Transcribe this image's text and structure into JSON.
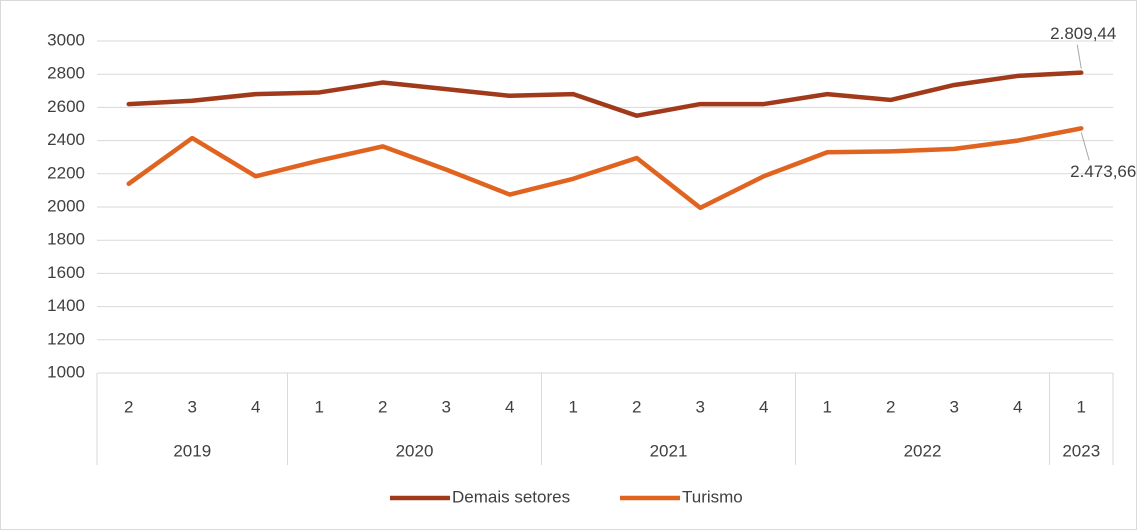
{
  "chart_data": {
    "type": "line",
    "groups": [
      {
        "label": "2019",
        "categories": [
          "2",
          "3",
          "4"
        ]
      },
      {
        "label": "2020",
        "categories": [
          "1",
          "2",
          "3",
          "4"
        ]
      },
      {
        "label": "2021",
        "categories": [
          "1",
          "2",
          "3",
          "4"
        ]
      },
      {
        "label": "2022",
        "categories": [
          "1",
          "2",
          "3",
          "4"
        ]
      },
      {
        "label": "2023",
        "categories": [
          "1"
        ]
      }
    ],
    "series": [
      {
        "name": "Demais setores",
        "color": "#a13a1b",
        "values": [
          2620,
          2640,
          2680,
          2690,
          2750,
          2710,
          2670,
          2680,
          2550,
          2620,
          2620,
          2680,
          2645,
          2735,
          2790,
          2809.44
        ],
        "value_labels": [
          null,
          null,
          null,
          null,
          null,
          null,
          null,
          null,
          null,
          null,
          null,
          null,
          null,
          null,
          null,
          "2.809,44"
        ]
      },
      {
        "name": "Turismo",
        "color": "#e0641f",
        "values": [
          2140,
          2415,
          2185,
          2280,
          2365,
          2225,
          2075,
          2170,
          2295,
          1995,
          2185,
          2330,
          2335,
          2350,
          2400,
          2473.66
        ],
        "value_labels": [
          null,
          null,
          null,
          null,
          null,
          null,
          null,
          null,
          null,
          null,
          null,
          null,
          null,
          null,
          null,
          "2.473,66"
        ]
      }
    ],
    "ylim": [
      1000,
      3000
    ],
    "yticks": [
      1000,
      1200,
      1400,
      1600,
      1800,
      2000,
      2200,
      2400,
      2600,
      2800,
      3000
    ],
    "grid": true,
    "legend": "bottom"
  }
}
